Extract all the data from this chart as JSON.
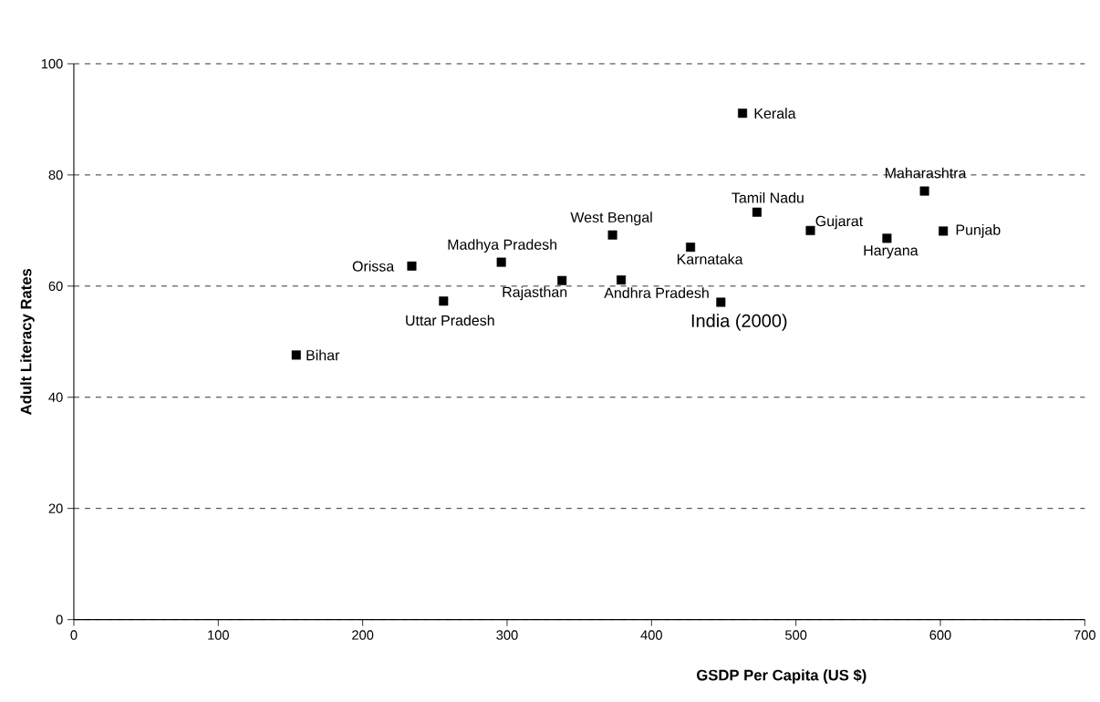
{
  "chart_data": {
    "type": "scatter",
    "xlabel": "GSDP Per Capita (US $)",
    "ylabel": "Adult Literacy Rates",
    "x": [
      154,
      234,
      256,
      296,
      338,
      373,
      379,
      427,
      448,
      463,
      473,
      510,
      563,
      589,
      602
    ],
    "values": [
      47.6,
      63.6,
      57.3,
      64.3,
      61.0,
      69.2,
      61.1,
      67.0,
      57.1,
      91.1,
      73.3,
      70.0,
      68.6,
      77.1,
      69.9
    ],
    "color": "#000000",
    "marker": "square",
    "grid": "y",
    "xlim": [
      0,
      700
    ],
    "ylim": [
      0,
      100
    ],
    "xticks": [
      0,
      100,
      200,
      300,
      400,
      500,
      600,
      700
    ],
    "yticks": [
      0,
      20,
      40,
      60,
      80,
      100
    ],
    "annotations": [
      {
        "text": "Bihar",
        "x": 154,
        "y": 47.6
      },
      {
        "text": "Orissa",
        "x": 234,
        "y": 63.6
      },
      {
        "text": "Uttar Pradesh",
        "x": 256,
        "y": 57.3
      },
      {
        "text": "Madhya Pradesh",
        "x": 296,
        "y": 64.3
      },
      {
        "text": "Rajasthan",
        "x": 338,
        "y": 61.0
      },
      {
        "text": "West Bengal",
        "x": 373,
        "y": 69.2
      },
      {
        "text": "Andhra Pradesh",
        "x": 379,
        "y": 61.1
      },
      {
        "text": "Karnataka",
        "x": 427,
        "y": 67.0
      },
      {
        "text": "India (2000)",
        "x": 448,
        "y": 57.1
      },
      {
        "text": "Kerala",
        "x": 463,
        "y": 91.1
      },
      {
        "text": "Tamil Nadu",
        "x": 473,
        "y": 73.3
      },
      {
        "text": "Gujarat",
        "x": 510,
        "y": 70.0
      },
      {
        "text": "Haryana",
        "x": 563,
        "y": 68.6
      },
      {
        "text": "Maharashtra",
        "x": 589,
        "y": 77.1
      },
      {
        "text": "Punjab",
        "x": 602,
        "y": 69.9
      }
    ]
  }
}
